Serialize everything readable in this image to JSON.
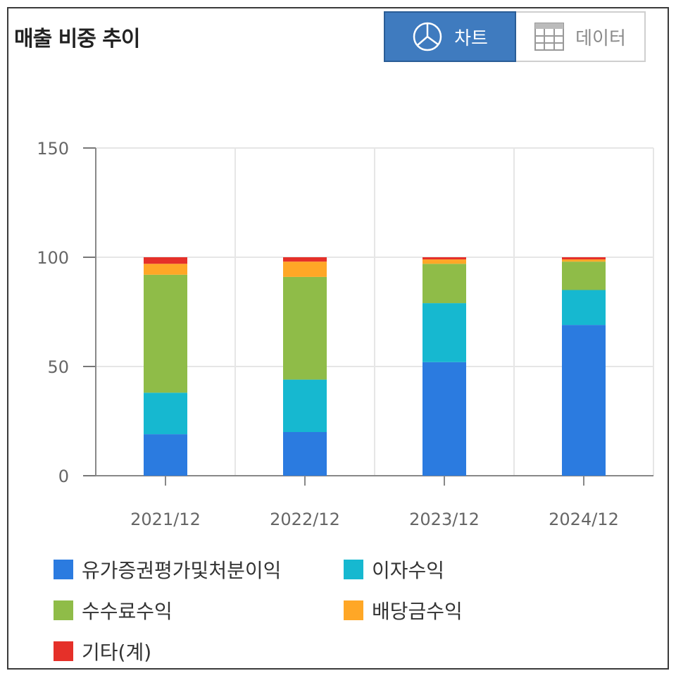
{
  "title": "매출 비중 추이",
  "toggle": {
    "chart_label": "차트",
    "data_label": "데이터",
    "chart_icon": "pie-chart-icon",
    "data_icon": "table-grid-icon"
  },
  "colors": {
    "유가증권평가및처분이익": "#2b7be0",
    "이자수익": "#16b8d0",
    "수수료수익": "#8fbc48",
    "배당금수익": "#ffa726",
    "기타(계)": "#e53029"
  },
  "chart_data": {
    "type": "bar",
    "stacked": true,
    "categories": [
      "2021/12",
      "2022/12",
      "2023/12",
      "2024/12"
    ],
    "series": [
      {
        "name": "유가증권평가및처분이익",
        "values": [
          19,
          20,
          52,
          69
        ]
      },
      {
        "name": "이자수익",
        "values": [
          19,
          24,
          27,
          16
        ]
      },
      {
        "name": "수수료수익",
        "values": [
          54,
          47,
          18,
          13
        ]
      },
      {
        "name": "배당금수익",
        "values": [
          5,
          7,
          2,
          1
        ]
      },
      {
        "name": "기타(계)",
        "values": [
          3,
          2,
          1,
          1
        ]
      }
    ],
    "y_ticks": [
      "0",
      "50",
      "100",
      "150"
    ],
    "ylim": [
      0,
      150
    ],
    "grid": true,
    "legend_position": "bottom"
  }
}
